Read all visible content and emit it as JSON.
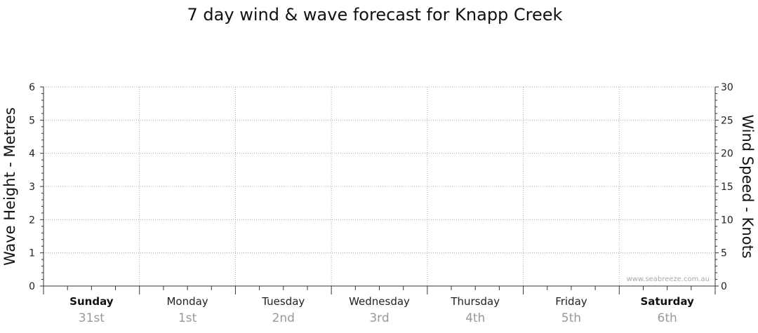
{
  "chart_data": {
    "type": "line",
    "title": "7 day wind & wave forecast for Knapp Creek",
    "ylabel_left": "Wave Height - Metres",
    "ylabel_right": "Wind Speed - Knots",
    "ylim_left": [
      0,
      6
    ],
    "ylim_right": [
      0,
      30
    ],
    "yticks_left": [
      "0",
      "1",
      "2",
      "3",
      "4",
      "5",
      "6"
    ],
    "yticks_right": [
      "0",
      "5",
      "10",
      "15",
      "20",
      "25",
      "30"
    ],
    "days": [
      {
        "day": "Sunday",
        "date": "31st",
        "bold": true
      },
      {
        "day": "Monday",
        "date": "1st",
        "bold": false
      },
      {
        "day": "Tuesday",
        "date": "2nd",
        "bold": false
      },
      {
        "day": "Wednesday",
        "date": "3rd",
        "bold": false
      },
      {
        "day": "Thursday",
        "date": "4th",
        "bold": false
      },
      {
        "day": "Friday",
        "date": "5th",
        "bold": false
      },
      {
        "day": "Saturday",
        "date": "6th",
        "bold": true
      }
    ],
    "series": [],
    "grid": true,
    "watermark": "www.seabreeze.com.au"
  },
  "colors": {
    "axis": "#333333",
    "grid": "#999999",
    "text": "#111111",
    "date_text": "#999999",
    "watermark": "#aaaaaa"
  }
}
